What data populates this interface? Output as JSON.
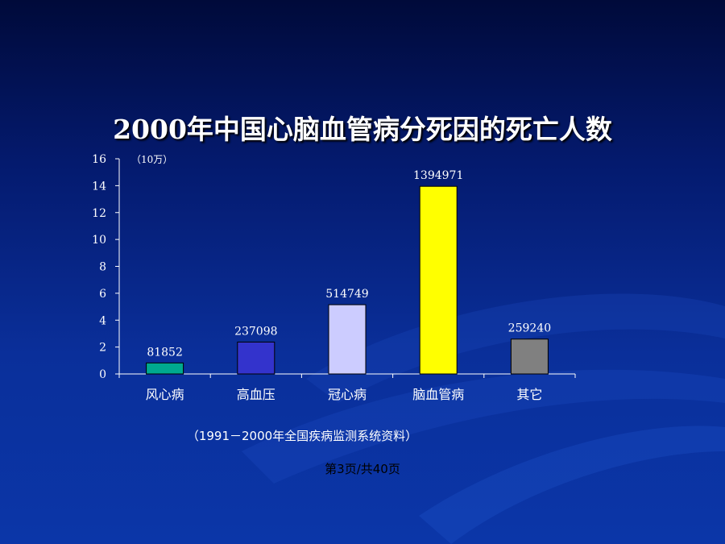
{
  "page_number": "第3页/共40页",
  "source_note": "（1991－2000年全国疾病监测系统资料）",
  "chart_data": {
    "type": "bar",
    "title": "2000年中国心脑血管病分死因的死亡人数",
    "unit_label": "（10万）",
    "categories": [
      "风心病",
      "高血压",
      "冠心病",
      "脑血管病",
      "其它"
    ],
    "values": [
      0.81852,
      2.37098,
      5.14749,
      13.94971,
      2.5924
    ],
    "data_labels": [
      "81852",
      "237098",
      "514749",
      "1394971",
      "259240"
    ],
    "colors": [
      "#00a98f",
      "#3333cc",
      "#ccccff",
      "#ffff00",
      "#808080"
    ],
    "ylim": [
      0,
      16
    ],
    "yticks": [
      "0",
      "2",
      "4",
      "6",
      "8",
      "10",
      "12",
      "14",
      "16"
    ],
    "grid": false,
    "legend": "none"
  }
}
